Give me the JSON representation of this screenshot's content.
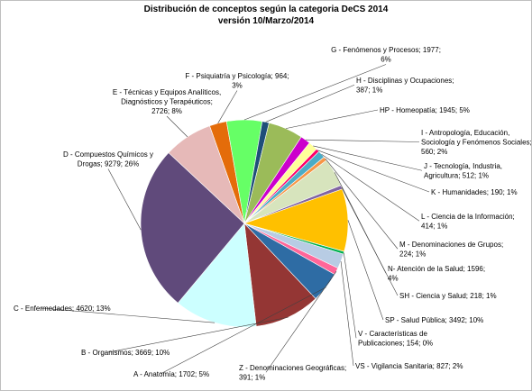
{
  "chart_data": {
    "type": "pie",
    "title": "Distribución de conceptos según la categoria DeCS 2014",
    "subtitle": "versión 10/Marzo/2014",
    "legend": "none",
    "slices": [
      {
        "category": "F - Psiquiatría y Psicología",
        "value": 964,
        "percent": 3,
        "color": "#e46c0a",
        "label_lines": [
          "F - Psiquiatría y Psicología; 964;",
          "3%"
        ]
      },
      {
        "category": "G - Fenómenos y Procesos",
        "value": 1977,
        "percent": 6,
        "color": "#66ff66",
        "label_lines": [
          "G - Fenómenos y Procesos; 1977;",
          "6%"
        ]
      },
      {
        "category": "H - Disciplinas y Ocupaciones",
        "value": 387,
        "percent": 1,
        "color": "#1f4e79",
        "label_lines": [
          "H - Disciplinas y Ocupaciones;",
          "387; 1%"
        ]
      },
      {
        "category": "HP - Homeopatía",
        "value": 1945,
        "percent": 5,
        "color": "#9bbb59",
        "label_lines": [
          "HP - Homeopatía; 1945; 5%"
        ]
      },
      {
        "category": "I - Antropología, Educación, Sociología y Fenómenos Sociales",
        "value": 560,
        "percent": 2,
        "color": "#cc00cc",
        "label_lines": [
          "I - Antropología, Educación,",
          "Sociología y Fenómenos Sociales;",
          "560; 2%"
        ]
      },
      {
        "category": "J - Tecnología, Industria, Agricultura",
        "value": 512,
        "percent": 1,
        "color": "#ffff99",
        "label_lines": [
          "J - Tecnología, Industria,",
          "Agricultura; 512; 1%"
        ]
      },
      {
        "category": "K - Humanidades",
        "value": 190,
        "percent": 1,
        "color": "#ff0066",
        "label_lines": [
          "K - Humanidades; 190; 1%"
        ]
      },
      {
        "category": "L - Ciencia de la Información",
        "value": 414,
        "percent": 1,
        "color": "#4bacc6",
        "label_lines": [
          "L - Ciencia de la Información;",
          "414; 1%"
        ]
      },
      {
        "category": "M - Denominaciones de Grupos",
        "value": 224,
        "percent": 1,
        "color": "#f79646",
        "label_lines": [
          "M - Denominaciones de Grupos;",
          "224; 1%"
        ]
      },
      {
        "category": "N - Atención de la Salud",
        "value": 1596,
        "percent": 4,
        "color": "#d7e4bd",
        "label_lines": [
          "N- Atención de la Salud; 1596;",
          "4%"
        ]
      },
      {
        "category": "SH - Ciencia y Salud",
        "value": 218,
        "percent": 1,
        "color": "#8064a2",
        "label_lines": [
          "SH - Ciencia y Salud; 218; 1%"
        ]
      },
      {
        "category": "SP - Salud Pública",
        "value": 3492,
        "percent": 10,
        "color": "#ffc000",
        "label_lines": [
          "SP - Salud Pública; 3492; 10%"
        ]
      },
      {
        "category": "V - Características de Publicaciones",
        "value": 154,
        "percent": 0,
        "color": "#00b050",
        "label_lines": [
          "V - Características de",
          "Publicaciones; 154; 0%"
        ]
      },
      {
        "category": "VS - Vigilancia Sanitaria",
        "value": 827,
        "percent": 2,
        "color": "#b8cce4",
        "label_lines": [
          "VS - Vigilancia Sanitaria; 827; 2%"
        ]
      },
      {
        "category": "Z - Denominaciones Geográficas",
        "value": 391,
        "percent": 1,
        "color": "#ff6699",
        "label_lines": [
          "Z - Denominaciones Geográficas;",
          "391; 1%"
        ]
      },
      {
        "category": "A - Anatomía",
        "value": 1702,
        "percent": 5,
        "color": "#2e6ca4",
        "label_lines": [
          "A - Anatomía; 1702; 5%"
        ]
      },
      {
        "category": "B - Organismos",
        "value": 3669,
        "percent": 10,
        "color": "#943634",
        "label_lines": [
          "B - Organismos; 3669; 10%"
        ]
      },
      {
        "category": "C - Enfermedades",
        "value": 4620,
        "percent": 13,
        "color": "#ccffff",
        "label_lines": [
          "C - Enfermedades; 4620; 13%"
        ]
      },
      {
        "category": "D - Compuestos Químicos y Drogas",
        "value": 9279,
        "percent": 26,
        "color": "#604a7b",
        "label_lines": [
          "D - Compuestos Químicos y",
          "Drogas; 9279; 26%"
        ]
      },
      {
        "category": "E - Técnicas y Equipos Analíticos, Diagnósticos y Terapéuticos",
        "value": 2726,
        "percent": 8,
        "color": "#e6b9b8",
        "label_lines": [
          "E - Técnicas y Equipos Analíticos,",
          "Diagnósticos y Terapéuticos;",
          "2726; 8%"
        ]
      }
    ]
  }
}
